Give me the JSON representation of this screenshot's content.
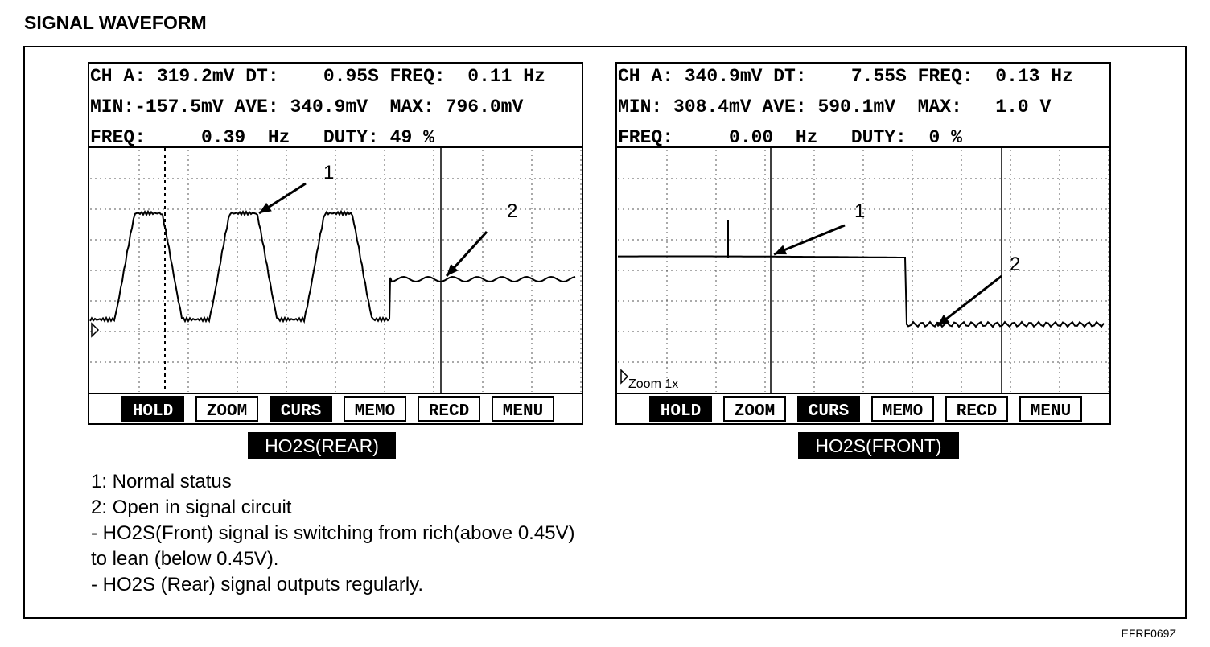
{
  "title": "SIGNAL WAVEFORM",
  "panels": [
    {
      "readout": [
        "CH A: 319.2mV DT:    0.95S FREQ:  0.11 Hz",
        "MIN:-157.5mV AVE: 340.9mV  MAX: 796.0mV",
        "FREQ:     0.39  Hz   DUTY: 49 %"
      ],
      "buttons": [
        "HOLD",
        "ZOOM",
        "CURS",
        "MEMO",
        "RECD",
        "MENU"
      ],
      "callouts": [
        "1",
        "2"
      ],
      "label": "HO2S(REAR)"
    },
    {
      "readout": [
        "CH A: 340.9mV DT:    7.55S FREQ:  0.13 Hz",
        "MIN: 308.4mV AVE: 590.1mV  MAX:   1.0 V",
        "FREQ:     0.00  Hz   DUTY:  0 %"
      ],
      "zoom": "Zoom 1x",
      "buttons": [
        "HOLD",
        "ZOOM",
        "CURS",
        "MEMO",
        "RECD",
        "MENU"
      ],
      "callouts": [
        "1",
        "2"
      ],
      "label": "HO2S(FRONT)"
    }
  ],
  "notes": [
    "1: Normal status",
    "2: Open in signal circuit",
    "- HO2S(Front) signal is switching from rich(above 0.45V)",
    "to lean (below 0.45V).",
    "- HO2S (Rear) signal outputs regularly."
  ],
  "code": "EFRF069Z"
}
